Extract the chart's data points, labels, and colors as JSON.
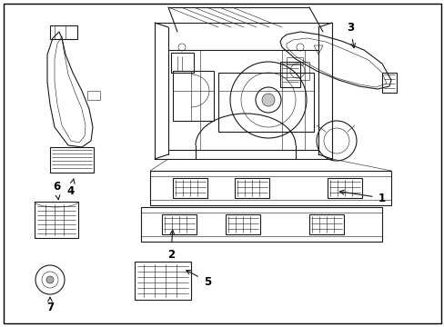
{
  "background_color": "#ffffff",
  "line_color": "#1a1a1a",
  "text_color": "#000000",
  "fig_width": 4.89,
  "fig_height": 3.6,
  "dpi": 100,
  "label_fontsize": 8.5,
  "lw_main": 0.8,
  "lw_thin": 0.4,
  "lw_thick": 1.2
}
